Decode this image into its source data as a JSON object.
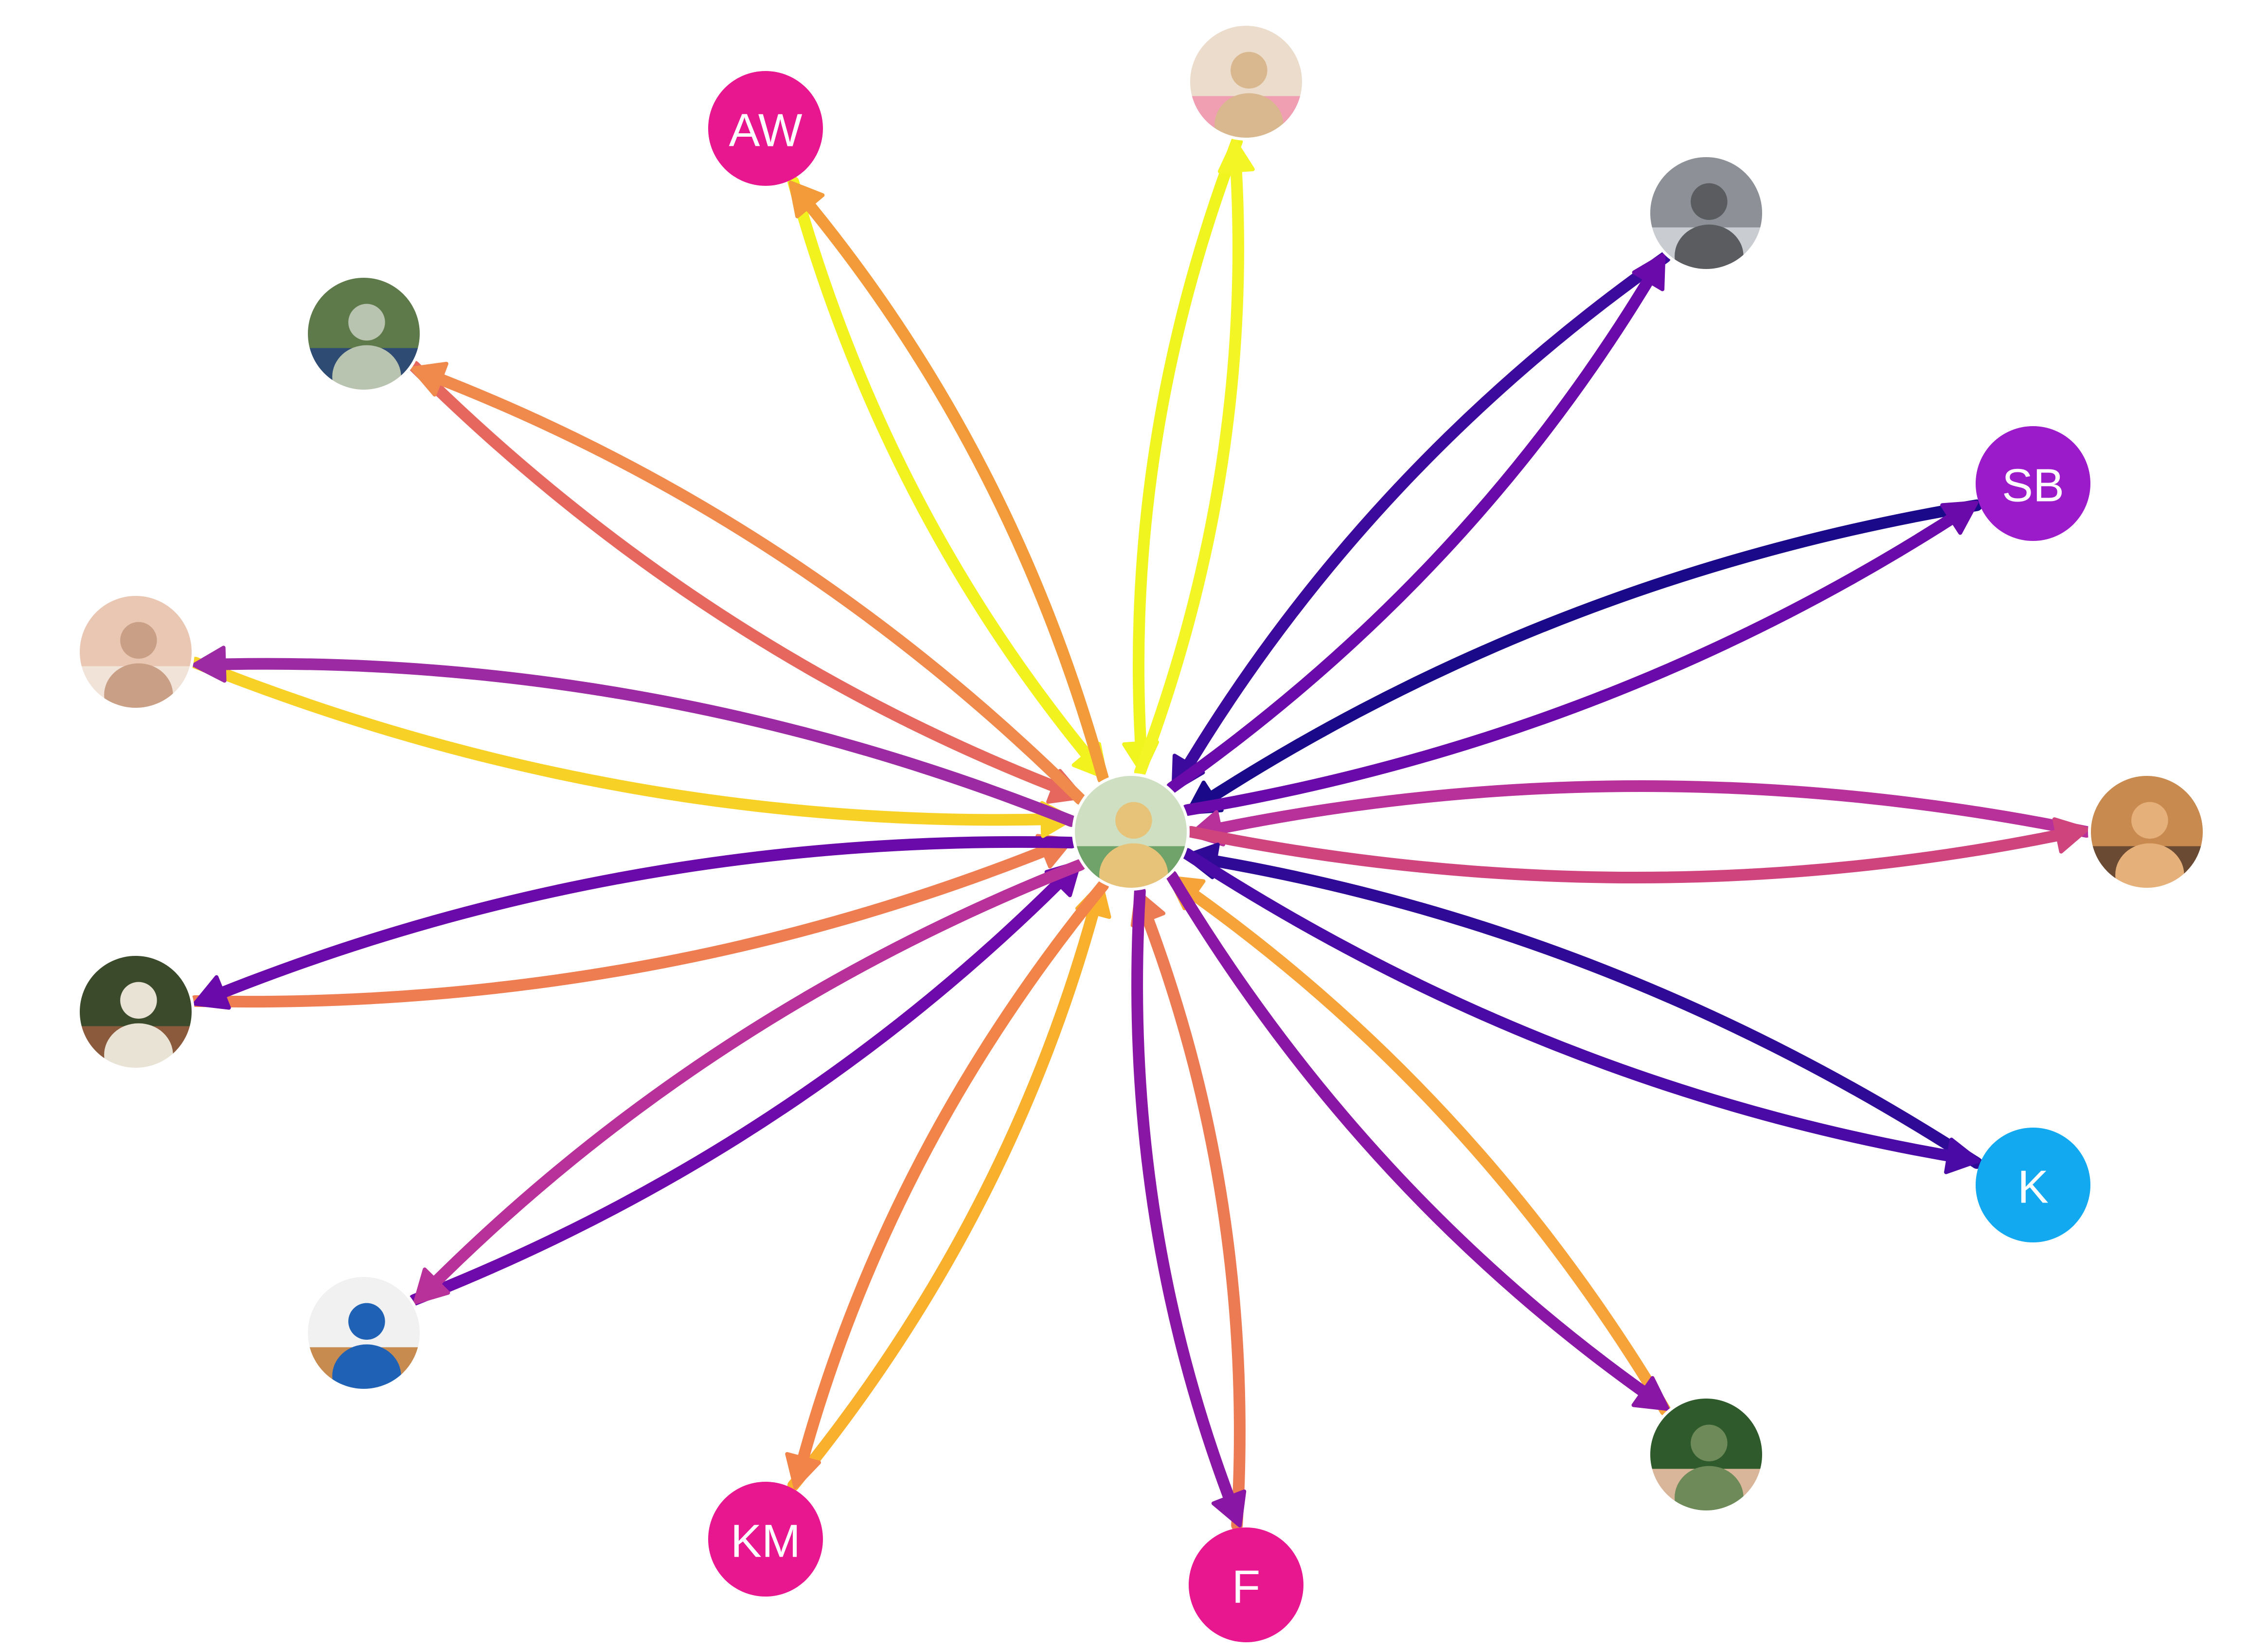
{
  "diagram": {
    "type": "network",
    "center": {
      "id": "center",
      "kind": "photo",
      "icon": "photo-two-women-with-dog"
    },
    "nodes": [
      {
        "id": "aw",
        "kind": "initials",
        "label": "AW",
        "color": "#e8178f"
      },
      {
        "id": "p-pink-glasses",
        "kind": "photo",
        "icon": "photo-woman-pink-glasses"
      },
      {
        "id": "p-rocky-slope",
        "kind": "photo",
        "icon": "photo-person-rocky-slope"
      },
      {
        "id": "sb",
        "kind": "initials",
        "label": "SB",
        "color": "#9b1ac9"
      },
      {
        "id": "p-cat",
        "kind": "photo",
        "icon": "photo-orange-cat"
      },
      {
        "id": "k",
        "kind": "initials",
        "label": "K",
        "color": "#12a9f0"
      },
      {
        "id": "p-man-suit",
        "kind": "photo",
        "icon": "photo-man-in-suit"
      },
      {
        "id": "f",
        "kind": "initials",
        "label": "F",
        "color": "#e8178f"
      },
      {
        "id": "km",
        "kind": "initials",
        "label": "KM",
        "color": "#e8178f"
      },
      {
        "id": "p-vaccine",
        "kind": "photo",
        "icon": "photo-vaccine-badge"
      },
      {
        "id": "p-woman-green",
        "kind": "photo",
        "icon": "photo-woman-green-shirt"
      },
      {
        "id": "p-selfie",
        "kind": "photo",
        "icon": "photo-man-selfie"
      },
      {
        "id": "p-river",
        "kind": "photo",
        "icon": "photo-man-by-river"
      }
    ],
    "edges": [
      {
        "from": "aw",
        "to": "center",
        "color": "#f2f21f"
      },
      {
        "from": "center",
        "to": "aw",
        "color": "#f39a3a"
      },
      {
        "from": "p-pink-glasses",
        "to": "center",
        "color": "#f0f51f"
      },
      {
        "from": "center",
        "to": "p-pink-glasses",
        "color": "#f3f524"
      },
      {
        "from": "p-rocky-slope",
        "to": "center",
        "color": "#3d0a9e"
      },
      {
        "from": "center",
        "to": "p-rocky-slope",
        "color": "#6a0aab"
      },
      {
        "from": "sb",
        "to": "center",
        "color": "#1a0a8a"
      },
      {
        "from": "center",
        "to": "sb",
        "color": "#6a0aab"
      },
      {
        "from": "p-cat",
        "to": "center",
        "color": "#b8309a"
      },
      {
        "from": "center",
        "to": "p-cat",
        "color": "#d0447e"
      },
      {
        "from": "k",
        "to": "center",
        "color": "#2e0a96"
      },
      {
        "from": "center",
        "to": "k",
        "color": "#4a0aa6"
      },
      {
        "from": "p-man-suit",
        "to": "center",
        "color": "#f6a43a"
      },
      {
        "from": "center",
        "to": "p-man-suit",
        "color": "#8a16a6"
      },
      {
        "from": "f",
        "to": "center",
        "color": "#ec7a52"
      },
      {
        "from": "center",
        "to": "f",
        "color": "#8a16a6"
      },
      {
        "from": "km",
        "to": "center",
        "color": "#f9b02c"
      },
      {
        "from": "center",
        "to": "km",
        "color": "#f2844a"
      },
      {
        "from": "p-vaccine",
        "to": "center",
        "color": "#6e0aab"
      },
      {
        "from": "center",
        "to": "p-vaccine",
        "color": "#b8309a"
      },
      {
        "from": "p-woman-green",
        "to": "center",
        "color": "#ee7d52"
      },
      {
        "from": "center",
        "to": "p-woman-green",
        "color": "#6a0aab"
      },
      {
        "from": "p-selfie",
        "to": "center",
        "color": "#f8d126"
      },
      {
        "from": "center",
        "to": "p-selfie",
        "color": "#9c2aa3"
      },
      {
        "from": "p-river",
        "to": "center",
        "color": "#e6675e"
      },
      {
        "from": "center",
        "to": "p-river",
        "color": "#f08a4c"
      }
    ]
  }
}
